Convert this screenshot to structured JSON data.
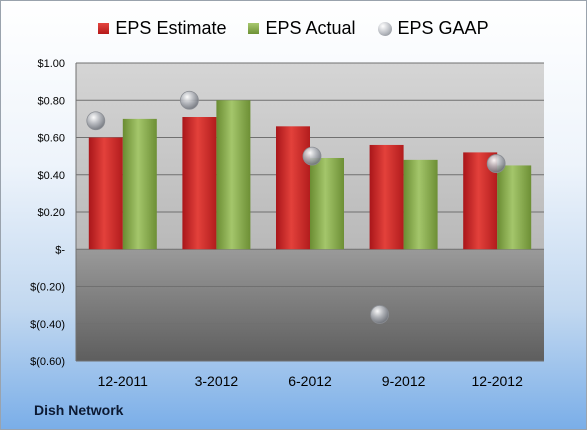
{
  "legend": {
    "estimate": "EPS Estimate",
    "actual": "EPS Actual",
    "gaap": "EPS GAAP"
  },
  "company": "Dish Network",
  "colors": {
    "estimate": "#c82a26",
    "actual": "#7ea743",
    "gaap": "#a9acb2"
  },
  "chart_data": {
    "type": "bar",
    "categories": [
      "12-2011",
      "3-2012",
      "6-2012",
      "9-2012",
      "12-2012"
    ],
    "series": [
      {
        "name": "EPS Estimate",
        "values": [
          0.6,
          0.71,
          0.66,
          0.56,
          0.52
        ]
      },
      {
        "name": "EPS Actual",
        "values": [
          0.7,
          0.8,
          0.49,
          0.48,
          0.45
        ]
      },
      {
        "name": "EPS GAAP",
        "type": "scatter",
        "values": [
          0.69,
          0.8,
          0.5,
          -0.35,
          0.46
        ]
      }
    ],
    "ylim": [
      -0.6,
      1.0
    ],
    "yticks": [
      1.0,
      0.8,
      0.6,
      0.4,
      0.2,
      0,
      -0.2,
      -0.4,
      -0.6
    ],
    "ytick_labels": [
      "$1.00",
      "$0.80",
      "$0.60",
      "$0.40",
      "$0.20",
      "$-",
      "$(0.20)",
      "$(0.40)",
      "$(0.60)"
    ],
    "grid": true,
    "legend_position": "top"
  }
}
